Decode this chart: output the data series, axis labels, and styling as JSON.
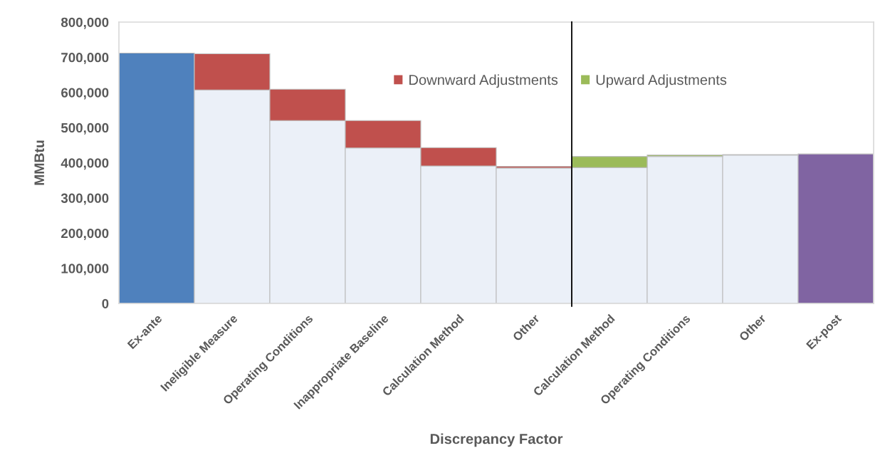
{
  "chart_data": {
    "type": "bar",
    "stacked": true,
    "categories": [
      "Ex-ante",
      "Ineligible Measure",
      "Operating Conditions",
      "Inappropriate Baseline",
      "Calculation Method",
      "Other",
      "Calculation Method",
      "Operating Conditions",
      "Other",
      "Ex-post"
    ],
    "series": [
      {
        "colors": [
          "#4f81bd",
          "#ebf0f8",
          "#ebf0f8",
          "#ebf0f8",
          "#ebf0f8",
          "#ebf0f8",
          "#ebf0f8",
          "#ebf0f8",
          "#ebf0f8",
          "#8064a2"
        ],
        "values": [
          712000,
          607000,
          520000,
          442000,
          391000,
          385000,
          386000,
          418000,
          422000,
          425000
        ]
      },
      {
        "name": "Downward Adjustments",
        "color": "#c0504d",
        "values": [
          null,
          103000,
          89000,
          78000,
          52000,
          5000,
          null,
          null,
          null,
          null
        ]
      },
      {
        "name": "Upward Adjustments",
        "color": "#9bbb59",
        "values": [
          null,
          null,
          null,
          null,
          null,
          null,
          32000,
          4000,
          1000,
          null
        ]
      }
    ],
    "xlabel": "Discrepancy Factor",
    "ylabel": "MMBtu",
    "ylim": [
      0,
      800000
    ],
    "yticks": [
      {
        "value": 0,
        "label": "0"
      },
      {
        "value": 100000,
        "label": "100,000"
      },
      {
        "value": 200000,
        "label": "200,000"
      },
      {
        "value": 300000,
        "label": "300,000"
      },
      {
        "value": 400000,
        "label": "400,000"
      },
      {
        "value": 500000,
        "label": "500,000"
      },
      {
        "value": 600000,
        "label": "600,000"
      },
      {
        "value": 700000,
        "label": "700,000"
      },
      {
        "value": 800000,
        "label": "800,000"
      }
    ],
    "legend": "top"
  }
}
